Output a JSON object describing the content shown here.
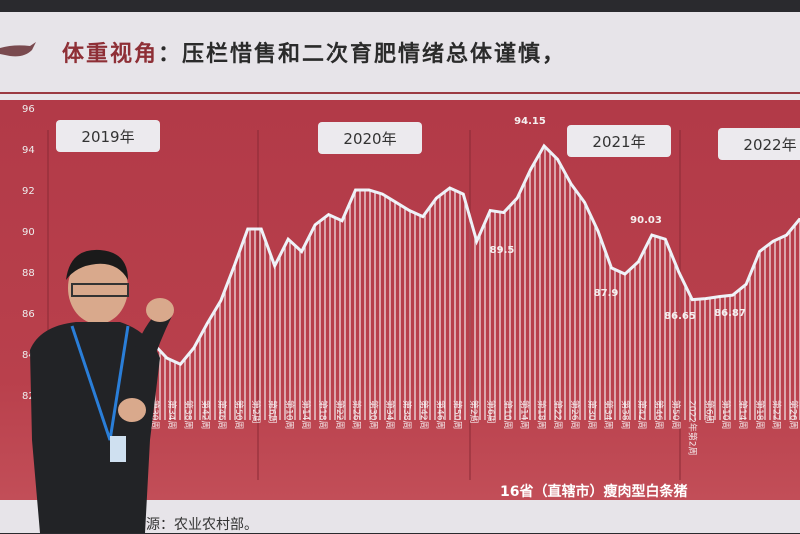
{
  "slide": {
    "title_highlight": "体重视角",
    "title_rest": "：压栏惜售和二次育肥情绪总体谨慎，",
    "source": "源：农业农村部。",
    "accent": "#b23a48"
  },
  "chart_data": {
    "type": "bar",
    "title": "",
    "footer_label": "16省（直辖市）瘦肉型白条猪",
    "ylim": [
      82,
      96
    ],
    "yticks": [
      82,
      84,
      86,
      88,
      90,
      92,
      94,
      96
    ],
    "year_labels": [
      "2019年",
      "2020年",
      "2021年",
      "2022年"
    ],
    "week_tick_labels": [
      "第30周",
      "第34周",
      "第38周",
      "第42周",
      "第46周",
      "第50周",
      "第2周",
      "第6周",
      "第10周",
      "第14周",
      "第18周",
      "第22周",
      "第26周",
      "第30周",
      "第34周",
      "第38周",
      "第42周",
      "第46周",
      "第50周",
      "第2周",
      "第6周",
      "第10周",
      "第14周",
      "第18周",
      "第22周",
      "第26周",
      "第30周",
      "第34周",
      "第38周",
      "第42周",
      "第46周",
      "第50周",
      "2022年第2周",
      "第6周",
      "第10周",
      "第14周",
      "第18周",
      "第22周",
      "第26周"
    ],
    "values": [
      84.9,
      84.5,
      83.8,
      83.5,
      84.3,
      85.5,
      86.6,
      88.3,
      90.1,
      90.1,
      88.3,
      89.6,
      89.0,
      90.3,
      90.8,
      90.5,
      92.0,
      92.0,
      91.8,
      91.4,
      91.0,
      90.7,
      91.6,
      92.1,
      91.8,
      89.5,
      91.0,
      90.9,
      91.6,
      93.0,
      94.15,
      93.5,
      92.3,
      91.4,
      90.0,
      88.2,
      87.9,
      88.5,
      89.8,
      89.6,
      88.0,
      86.65,
      86.7,
      86.8,
      86.87,
      87.4,
      89.0,
      89.5,
      89.8,
      90.6
    ],
    "annotations": [
      {
        "label": "94.15",
        "value": 94.15
      },
      {
        "label": "89.5",
        "value": 89.5
      },
      {
        "label": "87.9",
        "value": 87.9
      },
      {
        "label": "90.03",
        "value": 90.03
      },
      {
        "label": "86.65",
        "value": 86.65
      },
      {
        "label": "86.87",
        "value": 86.87
      }
    ],
    "grid": false
  }
}
